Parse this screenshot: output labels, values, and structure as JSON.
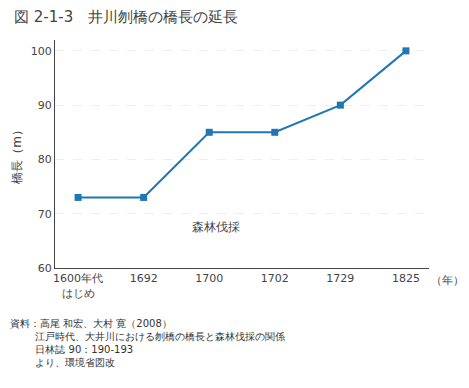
{
  "chart_data": {
    "type": "line",
    "title": "図 2-1-3　井川刎橋の橋長の延長",
    "ylabel": "橋長（m）",
    "xlabel": "（年）",
    "categories": [
      "1600年代\nはじめ",
      "1692",
      "1700",
      "1702",
      "1729",
      "1825"
    ],
    "values": [
      73,
      73,
      85,
      85,
      90,
      100
    ],
    "marker": "square",
    "ylim": [
      60,
      102
    ],
    "yticks": [
      60,
      70,
      80,
      90,
      100
    ],
    "grid": true,
    "annotations": [
      "森林伐採"
    ],
    "source": [
      "資料：高尾 和宏、大村 寛（2008）",
      "        江戸時代、大井川における刎橋の橋長と森林伐採の関係",
      "        日林誌 90：190-193",
      "        より、環境省図改"
    ]
  }
}
